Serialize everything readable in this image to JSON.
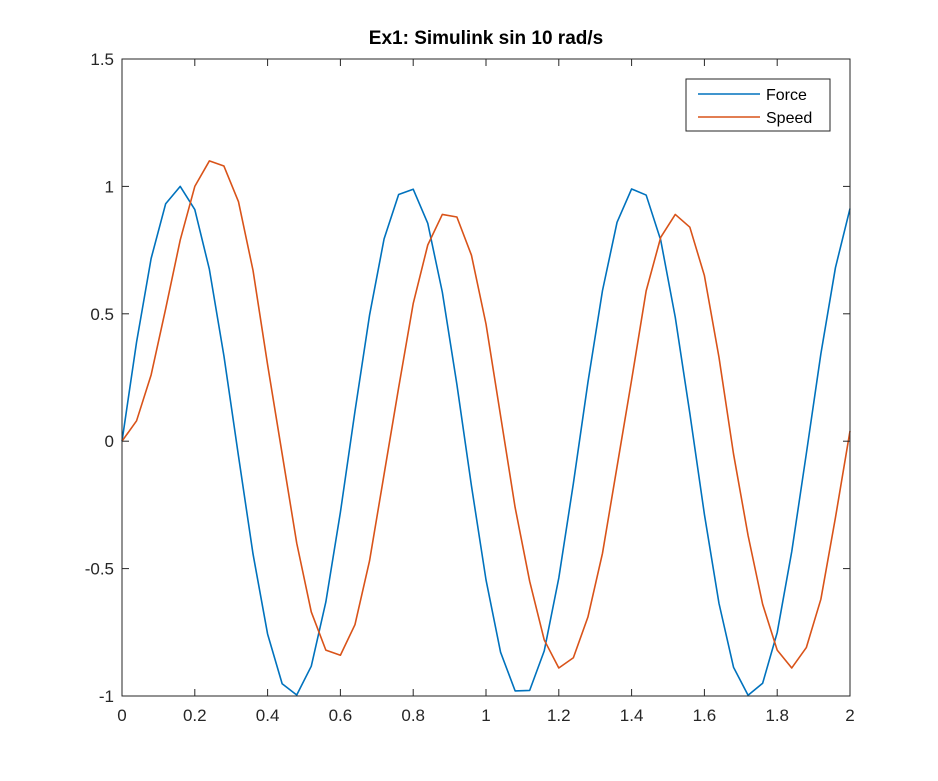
{
  "chart_data": {
    "type": "line",
    "title": "Ex1: Simulink sin 10 rad/s",
    "xlabel": "",
    "ylabel": "",
    "xlim": [
      0,
      2
    ],
    "ylim": [
      -1,
      1.5
    ],
    "x_ticks": [
      0,
      0.2,
      0.4,
      0.6,
      0.8,
      1,
      1.2,
      1.4,
      1.6,
      1.8,
      2
    ],
    "x_tick_labels": [
      "0",
      "0.2",
      "0.4",
      "0.6",
      "0.8",
      "1",
      "1.2",
      "1.4",
      "1.6",
      "1.8",
      "2"
    ],
    "y_ticks": [
      -1,
      -0.5,
      0,
      0.5,
      1,
      1.5
    ],
    "y_tick_labels": [
      "-1",
      "-0.5",
      "0",
      "0.5",
      "1",
      "1.5"
    ],
    "grid": false,
    "legend_position": "top-right",
    "x": [
      0,
      0.04,
      0.08,
      0.12,
      0.16,
      0.2,
      0.24,
      0.28,
      0.32,
      0.36,
      0.4,
      0.44,
      0.48,
      0.52,
      0.56,
      0.6,
      0.64,
      0.68,
      0.72,
      0.76,
      0.8,
      0.84,
      0.88,
      0.92,
      0.96,
      1.0,
      1.04,
      1.08,
      1.12,
      1.16,
      1.2,
      1.24,
      1.28,
      1.32,
      1.36,
      1.4,
      1.44,
      1.48,
      1.52,
      1.56,
      1.6,
      1.64,
      1.68,
      1.72,
      1.76,
      1.8,
      1.84,
      1.88,
      1.92,
      1.96,
      2.0
    ],
    "series": [
      {
        "name": "Force",
        "color": "#0072BD",
        "values": [
          0,
          0.389,
          0.717,
          0.932,
          1.0,
          0.909,
          0.675,
          0.335,
          -0.058,
          -0.443,
          -0.757,
          -0.952,
          -0.996,
          -0.883,
          -0.631,
          -0.279,
          0.117,
          0.494,
          0.794,
          0.968,
          0.989,
          0.855,
          0.585,
          0.223,
          -0.175,
          -0.544,
          -0.828,
          -0.98,
          -0.978,
          -0.823,
          -0.537,
          -0.166,
          0.231,
          0.591,
          0.859,
          0.99,
          0.966,
          0.789,
          0.486,
          0.109,
          -0.287,
          -0.636,
          -0.887,
          -0.997,
          -0.95,
          -0.751,
          -0.433,
          -0.049,
          0.343,
          0.681,
          0.913
        ]
      },
      {
        "name": "Speed",
        "color": "#D95319",
        "values": [
          0,
          0.08,
          0.26,
          0.52,
          0.79,
          1.0,
          1.1,
          1.08,
          0.94,
          0.67,
          0.3,
          -0.05,
          -0.4,
          -0.67,
          -0.82,
          -0.84,
          -0.72,
          -0.47,
          -0.13,
          0.21,
          0.54,
          0.77,
          0.89,
          0.88,
          0.73,
          0.46,
          0.1,
          -0.26,
          -0.55,
          -0.78,
          -0.89,
          -0.85,
          -0.69,
          -0.44,
          -0.1,
          0.24,
          0.59,
          0.8,
          0.89,
          0.84,
          0.65,
          0.33,
          -0.05,
          -0.37,
          -0.64,
          -0.82,
          -0.89,
          -0.81,
          -0.62,
          -0.3,
          0.04
        ]
      }
    ]
  }
}
